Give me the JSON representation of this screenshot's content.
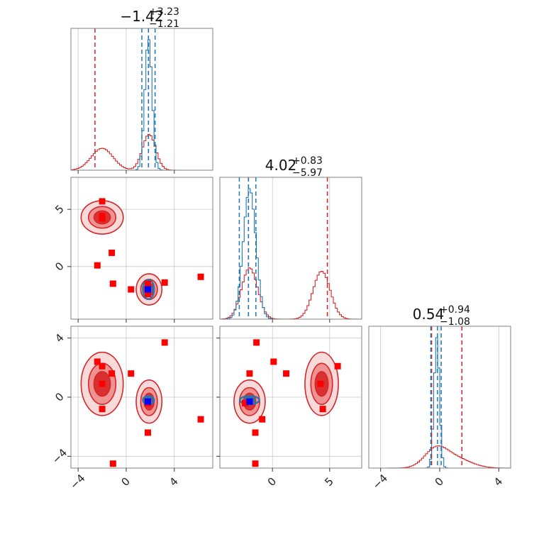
{
  "chart_data": {
    "type": "corner",
    "parameters": [
      {
        "title_value": "−1.42",
        "title_plus": "+3.23",
        "title_minus": "−1.21",
        "range": [
          -4.6,
          7.2
        ]
      },
      {
        "title_value": "4.02",
        "title_plus": "+0.83",
        "title_minus": "−5.97",
        "range": [
          -4.6,
          7.8
        ]
      },
      {
        "title_value": "0.54",
        "title_plus": "+0.94",
        "title_minus": "−1.08",
        "range": [
          -4.8,
          4.8
        ]
      }
    ],
    "ticks": [
      {
        "values": [
          -4,
          0,
          4
        ],
        "labels": [
          "−4",
          "0",
          "4"
        ]
      },
      {
        "values": [
          0,
          5
        ],
        "labels": [
          "0",
          "5"
        ]
      },
      {
        "values": [
          -4,
          0,
          4
        ],
        "labels": [
          "−4",
          "0",
          "4"
        ]
      }
    ],
    "colors": {
      "red": "#d62728",
      "blue": "#1f77b4",
      "marker_red": "#ff0000",
      "marker_blue": "#0000ff",
      "grid": "#c8c8c8"
    },
    "series": [
      {
        "color": "red",
        "components": [
          {
            "w": 0.5,
            "mu": [
              -2.0,
              4.3,
              0.9
            ],
            "sd": [
              0.9,
              0.75,
              1.1
            ]
          },
          {
            "w": 0.5,
            "mu": [
              1.9,
              -2.0,
              -0.3
            ],
            "sd": [
              0.55,
              0.7,
              0.75
            ]
          }
        ]
      },
      {
        "color": "blue",
        "components": [
          {
            "w": 1.0,
            "mu": [
              1.85,
              -2.0,
              -0.2
            ],
            "sd": [
              0.3,
              0.55,
              0.18
            ]
          }
        ]
      }
    ],
    "marginal_lines": [
      {
        "red": [
          -2.6,
          1.85
        ],
        "blue": [
          1.3,
          1.85,
          2.4
        ]
      },
      {
        "red": [
          -2.1,
          4.8
        ],
        "blue": [
          -2.9,
          -2.1,
          -1.45
        ]
      },
      {
        "red": [
          -0.55,
          1.5
        ],
        "blue": [
          -0.6,
          -0.15,
          0.1
        ]
      }
    ],
    "red_markers": [
      [
        -2.0,
        5.7,
        2.1
      ],
      [
        -2.0,
        4.2,
        0.9
      ],
      [
        -1.2,
        1.2,
        1.6
      ],
      [
        -2.4,
        0.1,
        2.4
      ],
      [
        -2.0,
        4.4,
        -0.8
      ],
      [
        0.4,
        -2.0,
        1.6
      ],
      [
        3.2,
        -1.4,
        3.7
      ],
      [
        6.2,
        -0.9,
        -1.5
      ],
      [
        1.8,
        -1.5,
        -2.4
      ],
      [
        -1.1,
        -1.5,
        -4.5
      ],
      [
        1.8,
        -2.4,
        -0.4
      ]
    ],
    "blue_marker": [
      1.8,
      -2.0,
      -0.3
    ]
  }
}
